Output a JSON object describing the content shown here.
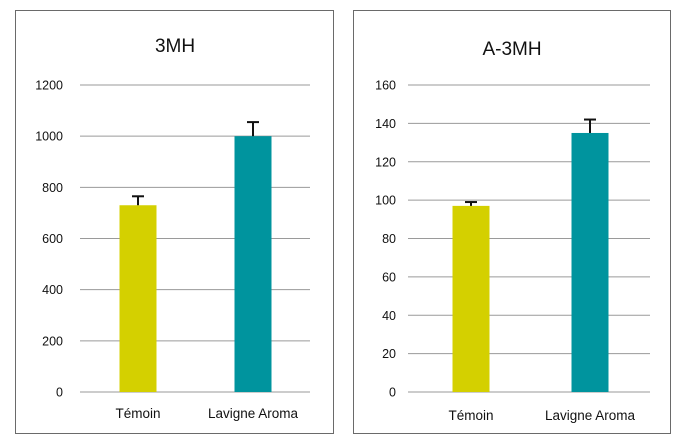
{
  "chart_data": [
    {
      "type": "bar",
      "title": "3MH",
      "categories": [
        "Témoin",
        "Lavigne Aroma"
      ],
      "values": [
        730,
        1000
      ],
      "error": [
        35,
        55
      ],
      "colors": [
        "#d4d000",
        "#00949e"
      ],
      "ylim": [
        0,
        1200
      ],
      "yticks": [
        "0",
        "200",
        "400",
        "600",
        "800",
        "1000",
        "1200"
      ],
      "grid": true,
      "xlabel": "",
      "ylabel": ""
    },
    {
      "type": "bar",
      "title": "A-3MH",
      "categories": [
        "Témoin",
        "Lavigne Aroma"
      ],
      "values": [
        97,
        135
      ],
      "error": [
        2,
        7
      ],
      "colors": [
        "#d4d000",
        "#00949e"
      ],
      "ylim": [
        0,
        160
      ],
      "yticks": [
        "0",
        "20",
        "40",
        "60",
        "80",
        "100",
        "120",
        "140",
        "160"
      ],
      "grid": true,
      "xlabel": "",
      "ylabel": ""
    }
  ]
}
